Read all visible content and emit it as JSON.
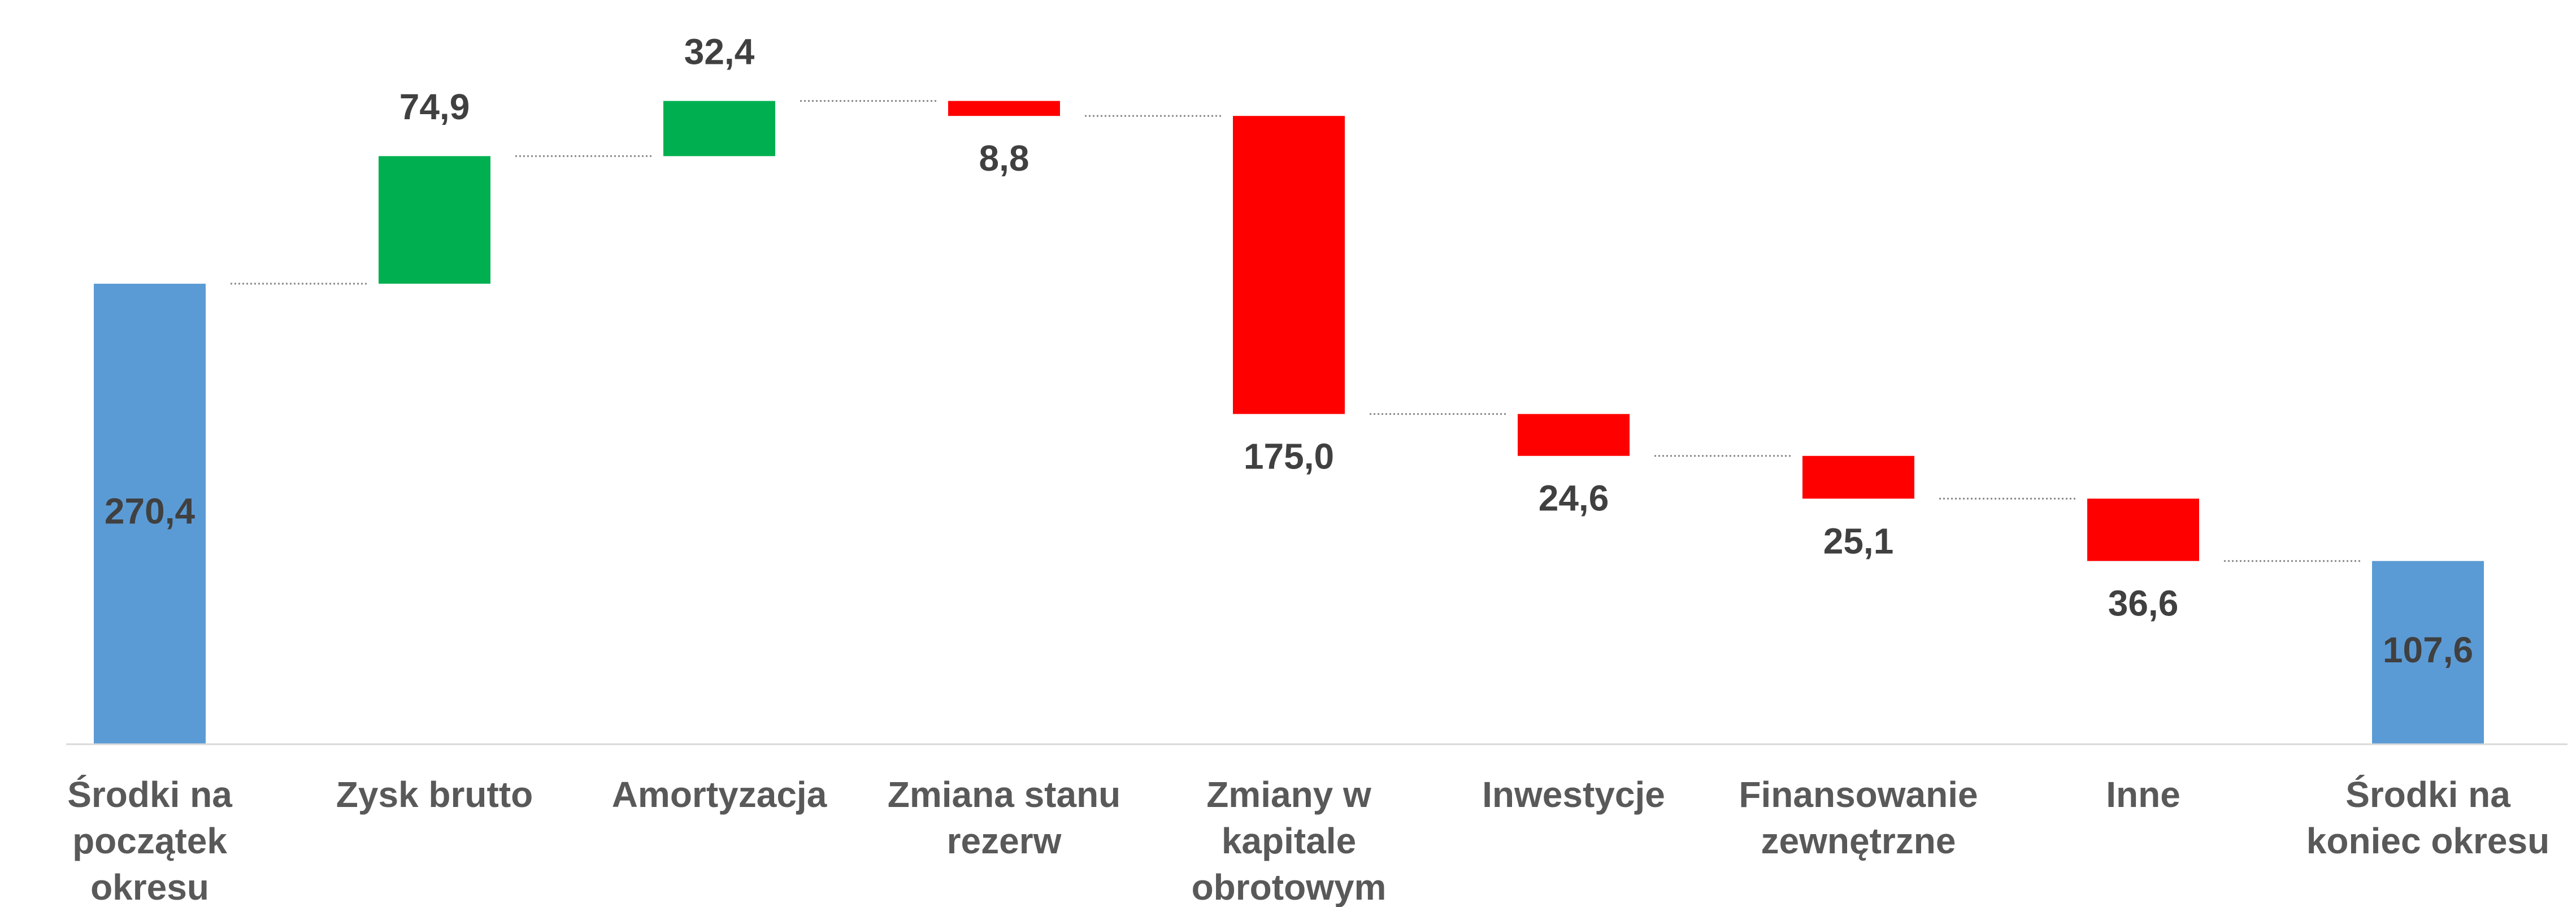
{
  "chart_data": {
    "type": "waterfall",
    "categories": [
      "Środki na\npoczątek\nokresu",
      "Zysk brutto",
      "Amortyzacja",
      "Zmiana stanu\nrezerw",
      "Zmiany w\nkapitale\nobrotowym",
      "Inwestycje",
      "Finansowanie\nzewnętrzne",
      "Inne",
      "Środki na\nkoniec okresu"
    ],
    "values": [
      270.4,
      74.9,
      32.4,
      -8.8,
      -175.0,
      -24.6,
      -25.1,
      -36.6,
      107.6
    ],
    "value_labels": [
      "270,4",
      "74,9",
      "32,4",
      "8,8",
      "175,0",
      "24,6",
      "25,1",
      "36,6",
      "107,6"
    ],
    "measure": [
      "absolute",
      "relative",
      "relative",
      "relative",
      "relative",
      "relative",
      "relative",
      "relative",
      "total"
    ],
    "colors": {
      "total": "#5b9bd5",
      "increase": "#00b050",
      "decrease": "#ff0000"
    },
    "ylim": [
      0,
      430
    ]
  }
}
